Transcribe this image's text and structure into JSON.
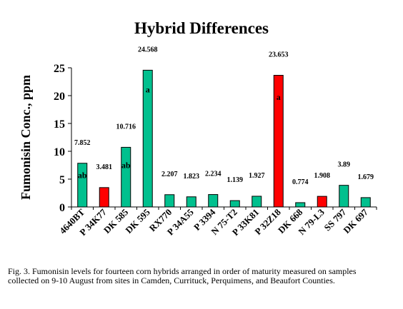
{
  "chart_data": {
    "type": "bar",
    "title": "Hybrid Differences",
    "ylabel": "Fumonisin Conc., ppm",
    "xlabel": "",
    "ylim": [
      0,
      25
    ],
    "yticks": [
      0,
      5,
      10,
      15,
      20,
      25
    ],
    "grid": false,
    "legend": "none",
    "categories": [
      "4640BT",
      "P 34K77",
      "DK 585",
      "DK 595",
      "RX770",
      "P 34A55",
      "P 3394",
      "N 75-T2",
      "P 33K81",
      "P 32Z18",
      "DK 668",
      "N 79-L3",
      "SS 797",
      "DK 697"
    ],
    "values": [
      7.852,
      3.481,
      10.716,
      24.568,
      2.207,
      1.823,
      2.234,
      1.139,
      1.927,
      23.653,
      0.774,
      1.908,
      3.89,
      1.679
    ],
    "value_labels": [
      "7.852",
      "3.481",
      "10.716",
      "24.568",
      "2.207",
      "1.823",
      "2.234",
      "1.139",
      "1.927",
      "23.653",
      "0.774",
      "1.908",
      "3.89",
      "1.679"
    ],
    "bar_colors": [
      "#00c08e",
      "#ff0000",
      "#00c08e",
      "#00c08e",
      "#00c08e",
      "#00c08e",
      "#00c08e",
      "#00c08e",
      "#00c08e",
      "#ff0000",
      "#00c08e",
      "#ff0000",
      "#00c08e",
      "#00c08e"
    ],
    "group_labels": [
      {
        "index": 0,
        "text": "ab",
        "value": 5.2
      },
      {
        "index": 2,
        "text": "ab",
        "value": 7.0
      },
      {
        "index": 3,
        "text": "a",
        "value": 20.6
      },
      {
        "index": 9,
        "text": "a",
        "value": 19.2
      }
    ]
  },
  "caption": "Fig. 3.  Fumonisin levels for fourteen corn hybrids arranged in order of maturity measured on samples collected on 9-10 August from sites in Camden, Currituck, Perquimens, and Beaufort Counties."
}
